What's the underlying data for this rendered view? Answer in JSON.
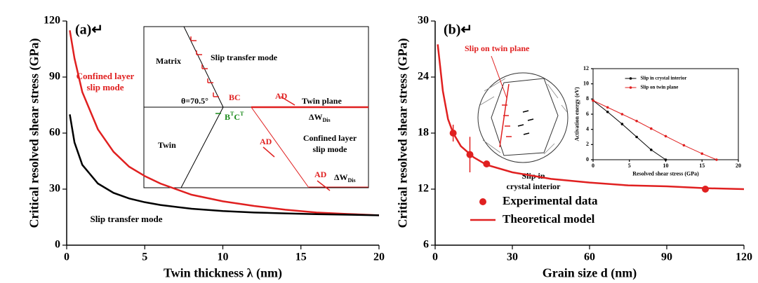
{
  "chart_data": [
    {
      "type": "line",
      "panel_label": "(a)↵",
      "xlabel": "Twin thickness λ (nm)",
      "ylabel": "Critical resolved shear stress (GPa)",
      "xlim": [
        0,
        20
      ],
      "xticks": [
        0,
        5,
        10,
        15,
        20
      ],
      "ylim": [
        0,
        120
      ],
      "yticks": [
        0,
        30,
        60,
        90,
        120
      ],
      "series": [
        {
          "color": "#e02020",
          "x": [
            0.2,
            0.5,
            1,
            2,
            3,
            4,
            5,
            6,
            8,
            10,
            12,
            14,
            16,
            18,
            20
          ],
          "values": [
            115,
            100,
            82,
            62,
            50,
            42,
            37,
            33,
            27,
            23.5,
            21,
            19,
            17.5,
            16.7,
            16
          ]
        },
        {
          "color": "#000000",
          "x": [
            0.2,
            0.5,
            1,
            2,
            3,
            4,
            5,
            6,
            8,
            10,
            12,
            14,
            16,
            18,
            20
          ],
          "values": [
            70,
            55,
            43,
            33,
            28,
            25,
            23,
            21.5,
            19.5,
            18.3,
            17.5,
            17,
            16.6,
            16.3,
            16
          ]
        }
      ],
      "annotations": [
        "Confined layer",
        "slip mode",
        "Slip transfer mode"
      ],
      "schematic": {
        "matrix": "Matrix",
        "slip_transfer": "Slip transfer mode",
        "angle": "θ=70.5°",
        "bc": "BC",
        "btct": [
          "B",
          "T",
          "C",
          "T"
        ],
        "twin_plane": "Twin plane",
        "ad": [
          "AD",
          "AD",
          "AD"
        ],
        "dw": [
          "ΔW",
          "Dis"
        ],
        "twin": "Twin",
        "confined": [
          "Confined layer",
          "slip mode"
        ]
      }
    },
    {
      "type": "line",
      "panel_label": "(b)↵",
      "xlabel": "Grain size d (nm)",
      "ylabel": "Critical resolved shear stress (GPa)",
      "xlim": [
        0,
        120
      ],
      "xticks": [
        0,
        30,
        60,
        90,
        120
      ],
      "ylim": [
        6,
        30
      ],
      "yticks": [
        6,
        12,
        18,
        24,
        30
      ],
      "legend": "lower left",
      "series": [
        {
          "name": "Experimental data",
          "type": "scatter",
          "color": "#e02020",
          "x": [
            7,
            13.5,
            20,
            105
          ],
          "values": [
            18,
            15.7,
            14.7,
            12
          ],
          "errors": [
            0.9,
            1.9,
            0.2,
            0.2
          ]
        },
        {
          "name": "Theoretical model",
          "type": "line",
          "color": "#e02020",
          "x": [
            1,
            2,
            3,
            5,
            7,
            10,
            15,
            20,
            30,
            45,
            60,
            75,
            90,
            105,
            120
          ],
          "values": [
            27.5,
            25,
            22.5,
            19.5,
            18,
            16.6,
            15.4,
            14.6,
            13.8,
            13.1,
            12.7,
            12.4,
            12.3,
            12.1,
            12.0
          ]
        }
      ],
      "schematic": {
        "twin_slip": "Slip on twin plane",
        "interior": [
          "Slip in",
          "crystal interior"
        ]
      }
    },
    {
      "type": "line",
      "xlabel": "Resolved shear stress (GPa)",
      "ylabel": "Activation energy (eV)",
      "xlim": [
        0,
        20
      ],
      "xticks": [
        0,
        5,
        10,
        15,
        20
      ],
      "ylim": [
        0,
        12
      ],
      "yticks": [
        0,
        2,
        4,
        6,
        8,
        10,
        12
      ],
      "legend": "upper right",
      "series": [
        {
          "name": "Slip in crystal interior",
          "type": "line-marker",
          "color": "#000000",
          "x": [
            0,
            2,
            4,
            6,
            8,
            10
          ],
          "values": [
            7.8,
            6.3,
            4.7,
            3.0,
            1.3,
            0
          ]
        },
        {
          "name": "Slip on twin plane",
          "type": "line-marker",
          "color": "#e02020",
          "x": [
            0,
            2,
            4,
            6,
            8,
            10,
            12.5,
            15,
            17
          ],
          "values": [
            7.8,
            6.9,
            6.0,
            5.1,
            4.1,
            3.1,
            1.9,
            0.8,
            0
          ]
        }
      ]
    }
  ]
}
